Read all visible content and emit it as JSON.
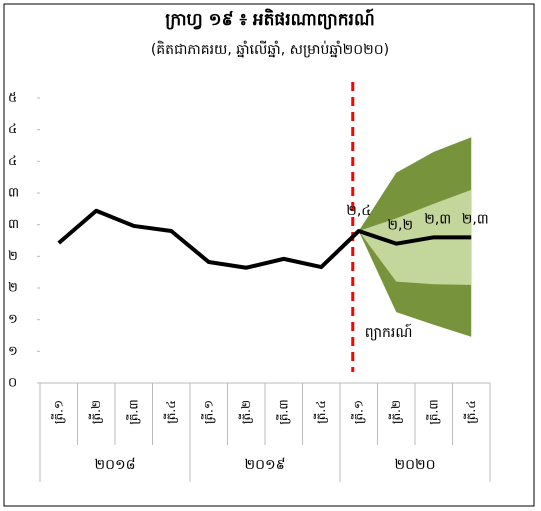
{
  "chart_data": {
    "type": "line",
    "title": "ក្រាហ្វ ១៩ ៖ អតិផរណាព្យាករណ៍",
    "subtitle": "(គិតជាភាគរយ, ឆ្នាំលើឆ្នាំ, សម្រាប់ឆ្នាំ២០២០)",
    "categories": [
      "ត្រី.១",
      "ត្រី.២",
      "ត្រី.៣",
      "ត្រី.៤",
      "ត្រី.១",
      "ត្រី.២",
      "ត្រី.៣",
      "ត្រី.៤",
      "ត្រី.១",
      "ត្រី.២",
      "ត្រី.៣",
      "ត្រី.៤"
    ],
    "groups": [
      {
        "label": "២០១៨",
        "span": 4
      },
      {
        "label": "២០១៩",
        "span": 4
      },
      {
        "label": "២០២០",
        "span": 4
      }
    ],
    "series": [
      {
        "color": "#000000",
        "values": [
          2.21,
          2.72,
          2.48,
          2.4,
          1.91,
          1.82,
          1.96,
          1.83,
          2.4,
          2.2,
          2.3,
          2.3
        ],
        "value_labels": [
          null,
          null,
          null,
          null,
          null,
          null,
          null,
          null,
          "២,៤",
          "២,២",
          "២,៣",
          "២,៣"
        ]
      }
    ],
    "bands": [
      {
        "color": "#77933c",
        "upper": [
          null,
          null,
          null,
          null,
          null,
          null,
          null,
          null,
          2.4,
          3.32,
          3.65,
          3.88
        ],
        "lower": [
          null,
          null,
          null,
          null,
          null,
          null,
          null,
          null,
          2.4,
          1.12,
          0.92,
          0.73
        ]
      },
      {
        "color": "#c3d69b",
        "upper": [
          null,
          null,
          null,
          null,
          null,
          null,
          null,
          null,
          2.4,
          2.6,
          2.83,
          3.05
        ],
        "lower": [
          null,
          null,
          null,
          null,
          null,
          null,
          null,
          null,
          2.4,
          1.6,
          1.56,
          1.55
        ]
      }
    ],
    "forecast_start": 8,
    "forecast_color": "#ff0000",
    "annotation": "ព្យាករណ៍",
    "ylim": [
      0,
      4.5
    ],
    "yticks": [
      {
        "value": 0,
        "label": "០"
      },
      {
        "value": 0.5,
        "label": "១"
      },
      {
        "value": 1,
        "label": "១"
      },
      {
        "value": 1.5,
        "label": "២"
      },
      {
        "value": 2,
        "label": "២"
      },
      {
        "value": 2.5,
        "label": "៣"
      },
      {
        "value": 3,
        "label": "៣"
      },
      {
        "value": 3.5,
        "label": "៤"
      },
      {
        "value": 4,
        "label": "៤"
      },
      {
        "value": 4.5,
        "label": "៥"
      }
    ]
  }
}
